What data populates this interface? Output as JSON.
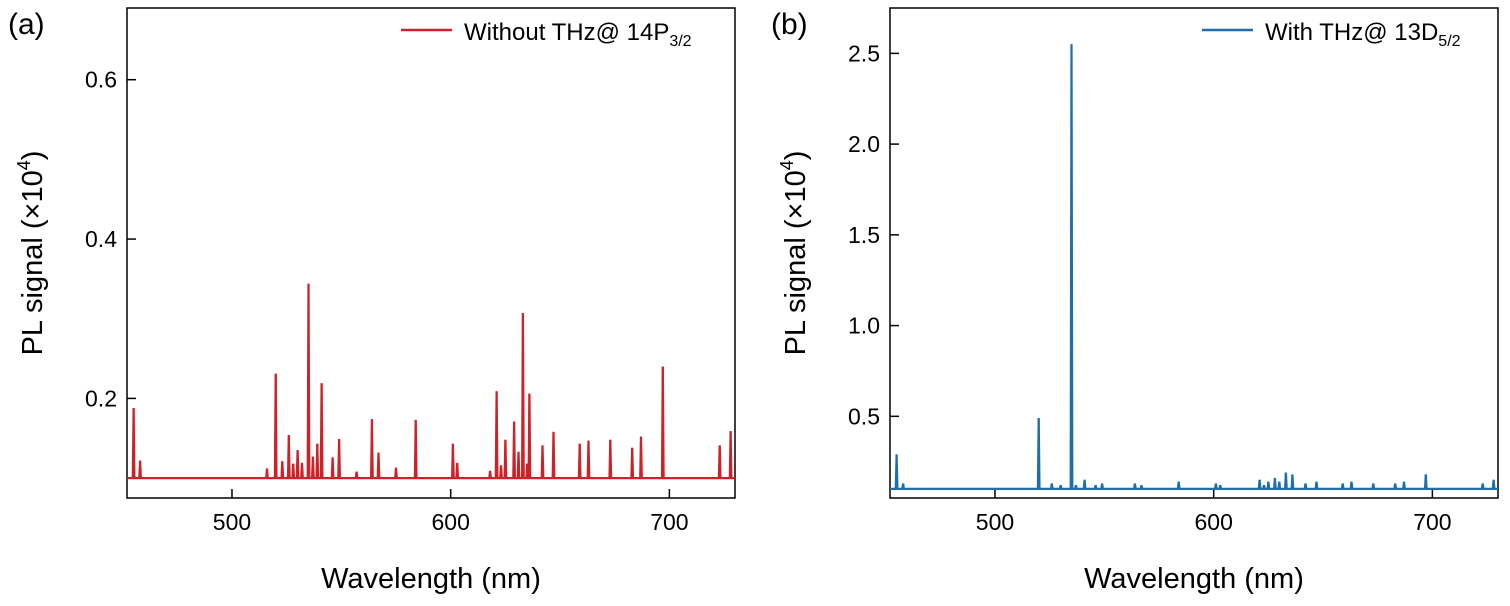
{
  "chart_data": [
    {
      "panel_label": "(a)",
      "type": "line",
      "xlabel": "Wavelength (nm)",
      "ylabel_main": "PL signal (×10",
      "ylabel_sup": "4",
      "ylabel_close": ")",
      "legend": {
        "text": "Without THz@ 14P",
        "sub": "3/2",
        "position": "top-right"
      },
      "color": "#cc2229",
      "xlim": [
        452,
        730
      ],
      "ylim": [
        0.075,
        0.69
      ],
      "xticks": [
        500,
        600,
        700
      ],
      "yticks": [
        0.2,
        0.4,
        0.6
      ],
      "xtick_labels": [
        "500",
        "600",
        "700"
      ],
      "ytick_labels": [
        "0.2",
        "0.4",
        "0.6"
      ],
      "baseline": 0.1,
      "peaks": [
        {
          "x": 455,
          "y": 0.188
        },
        {
          "x": 458,
          "y": 0.122
        },
        {
          "x": 516,
          "y": 0.112
        },
        {
          "x": 520,
          "y": 0.231
        },
        {
          "x": 523,
          "y": 0.121
        },
        {
          "x": 526,
          "y": 0.154
        },
        {
          "x": 528,
          "y": 0.118
        },
        {
          "x": 530,
          "y": 0.135
        },
        {
          "x": 532,
          "y": 0.119
        },
        {
          "x": 535,
          "y": 0.344
        },
        {
          "x": 537,
          "y": 0.127
        },
        {
          "x": 539,
          "y": 0.143
        },
        {
          "x": 541,
          "y": 0.219
        },
        {
          "x": 546,
          "y": 0.126
        },
        {
          "x": 549,
          "y": 0.149
        },
        {
          "x": 557,
          "y": 0.108
        },
        {
          "x": 564,
          "y": 0.174
        },
        {
          "x": 567,
          "y": 0.132
        },
        {
          "x": 575,
          "y": 0.113
        },
        {
          "x": 584,
          "y": 0.173
        },
        {
          "x": 601,
          "y": 0.143
        },
        {
          "x": 603,
          "y": 0.119
        },
        {
          "x": 618,
          "y": 0.109
        },
        {
          "x": 621,
          "y": 0.209
        },
        {
          "x": 623,
          "y": 0.116
        },
        {
          "x": 625,
          "y": 0.148
        },
        {
          "x": 629,
          "y": 0.171
        },
        {
          "x": 631,
          "y": 0.133
        },
        {
          "x": 633,
          "y": 0.307
        },
        {
          "x": 635,
          "y": 0.118
        },
        {
          "x": 636,
          "y": 0.206
        },
        {
          "x": 642,
          "y": 0.141
        },
        {
          "x": 647,
          "y": 0.158
        },
        {
          "x": 659,
          "y": 0.143
        },
        {
          "x": 663,
          "y": 0.147
        },
        {
          "x": 673,
          "y": 0.148
        },
        {
          "x": 683,
          "y": 0.138
        },
        {
          "x": 687,
          "y": 0.152
        },
        {
          "x": 697,
          "y": 0.24
        },
        {
          "x": 723,
          "y": 0.141
        },
        {
          "x": 728,
          "y": 0.159
        }
      ]
    },
    {
      "panel_label": "(b)",
      "type": "line",
      "xlabel": "Wavelength (nm)",
      "ylabel_main": "PL signal (×10",
      "ylabel_sup": "4",
      "ylabel_close": ")",
      "legend": {
        "text": "With THz@ 13D",
        "sub": "5/2",
        "position": "top-right"
      },
      "color": "#1f6eab",
      "xlim": [
        452,
        730
      ],
      "ylim": [
        0.05,
        2.75
      ],
      "xticks": [
        500,
        600,
        700
      ],
      "yticks": [
        0.5,
        1.0,
        1.5,
        2.0,
        2.5
      ],
      "xtick_labels": [
        "500",
        "600",
        "700"
      ],
      "ytick_labels": [
        "0.5",
        "1.0",
        "1.5",
        "2.0",
        "2.5"
      ],
      "baseline": 0.1,
      "peaks": [
        {
          "x": 455,
          "y": 0.29
        },
        {
          "x": 458,
          "y": 0.13
        },
        {
          "x": 520,
          "y": 0.49
        },
        {
          "x": 526,
          "y": 0.13
        },
        {
          "x": 530,
          "y": 0.12
        },
        {
          "x": 535,
          "y": 2.55
        },
        {
          "x": 537,
          "y": 0.12
        },
        {
          "x": 541,
          "y": 0.15
        },
        {
          "x": 546,
          "y": 0.12
        },
        {
          "x": 549,
          "y": 0.13
        },
        {
          "x": 564,
          "y": 0.13
        },
        {
          "x": 567,
          "y": 0.12
        },
        {
          "x": 584,
          "y": 0.14
        },
        {
          "x": 601,
          "y": 0.13
        },
        {
          "x": 603,
          "y": 0.12
        },
        {
          "x": 621,
          "y": 0.15
        },
        {
          "x": 623,
          "y": 0.12
        },
        {
          "x": 625,
          "y": 0.14
        },
        {
          "x": 628,
          "y": 0.16
        },
        {
          "x": 630,
          "y": 0.14
        },
        {
          "x": 633,
          "y": 0.19
        },
        {
          "x": 636,
          "y": 0.18
        },
        {
          "x": 642,
          "y": 0.13
        },
        {
          "x": 647,
          "y": 0.14
        },
        {
          "x": 659,
          "y": 0.13
        },
        {
          "x": 663,
          "y": 0.14
        },
        {
          "x": 673,
          "y": 0.13
        },
        {
          "x": 683,
          "y": 0.13
        },
        {
          "x": 687,
          "y": 0.14
        },
        {
          "x": 697,
          "y": 0.18
        },
        {
          "x": 723,
          "y": 0.13
        },
        {
          "x": 728,
          "y": 0.15
        }
      ]
    }
  ]
}
